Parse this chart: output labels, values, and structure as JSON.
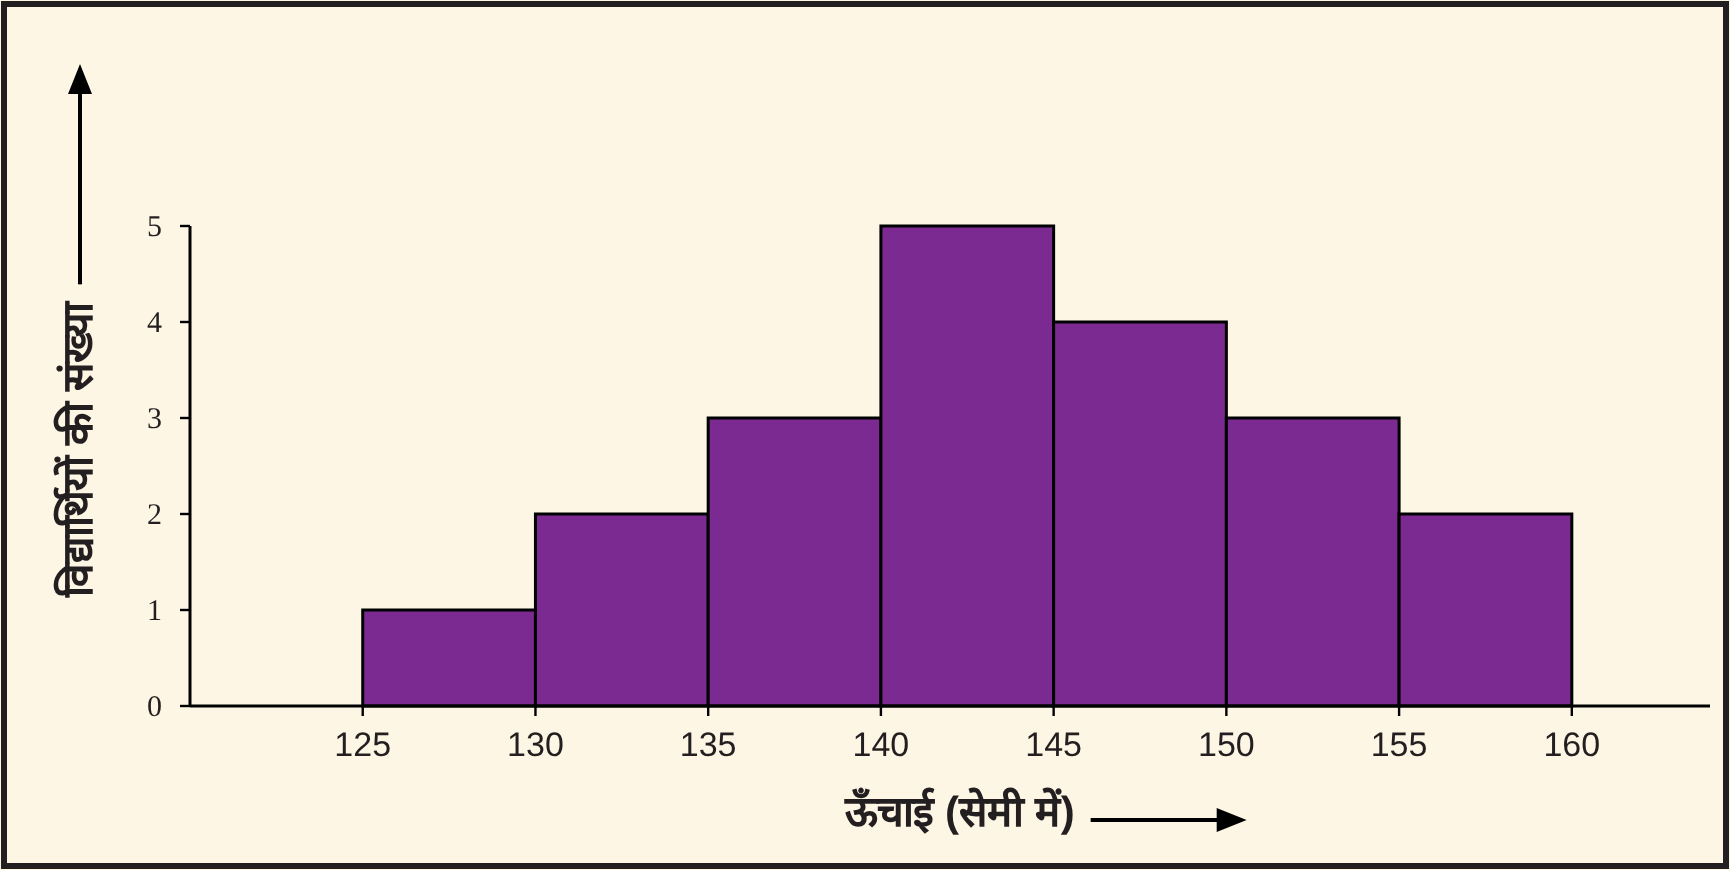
{
  "chart_data": {
    "type": "histogram",
    "xlabel": "ऊँचाई (सेमी में)",
    "ylabel": "विद्यार्थियों की संख्या",
    "bins": [
      125,
      130,
      135,
      140,
      145,
      150,
      155,
      160
    ],
    "values": [
      1,
      2,
      3,
      5,
      4,
      3,
      2
    ],
    "color": "#7b2a91",
    "xlim": [
      120,
      164
    ],
    "ylim": [
      0,
      5
    ],
    "xticks": [
      125,
      130,
      135,
      140,
      145,
      150,
      155,
      160
    ],
    "yticks": [
      0,
      1,
      2,
      3,
      4,
      5
    ]
  }
}
